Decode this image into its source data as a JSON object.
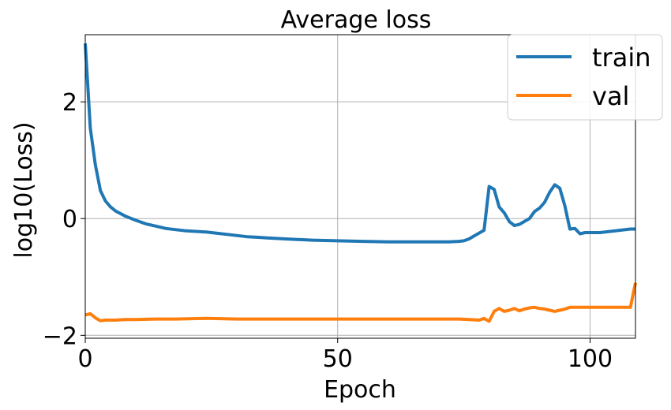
{
  "chart_data": {
    "type": "line",
    "title": "Average loss",
    "xlabel": "Epoch",
    "ylabel": "log10(Loss)",
    "xlim": [
      0,
      109
    ],
    "ylim": [
      -2.05,
      3.15
    ],
    "xticks": [
      0,
      50,
      100
    ],
    "yticks": [
      -2,
      0,
      2
    ],
    "xtick_labels": [
      "0",
      "50",
      "100"
    ],
    "ytick_labels": [
      "−2",
      "0",
      "2"
    ],
    "grid": true,
    "legend_position": "top-right",
    "series": [
      {
        "name": "train",
        "color": "#1f77b4",
        "x": [
          0,
          1,
          2,
          3,
          4,
          5,
          6,
          8,
          10,
          12,
          14,
          16,
          18,
          20,
          22,
          24,
          26,
          28,
          30,
          32,
          34,
          36,
          40,
          45,
          50,
          55,
          60,
          65,
          70,
          72,
          74,
          75,
          76,
          77,
          78,
          79,
          80,
          81,
          82,
          83,
          84,
          85,
          86,
          87,
          88,
          89,
          90,
          91,
          92,
          93,
          94,
          95,
          96,
          97,
          98,
          99,
          100,
          102,
          104,
          106,
          108,
          109
        ],
        "y": [
          3.0,
          1.55,
          0.92,
          0.48,
          0.3,
          0.2,
          0.13,
          0.04,
          -0.03,
          -0.09,
          -0.13,
          -0.17,
          -0.19,
          -0.21,
          -0.22,
          -0.23,
          -0.25,
          -0.27,
          -0.29,
          -0.31,
          -0.32,
          -0.33,
          -0.35,
          -0.37,
          -0.38,
          -0.39,
          -0.4,
          -0.4,
          -0.4,
          -0.4,
          -0.39,
          -0.38,
          -0.35,
          -0.3,
          -0.25,
          -0.2,
          0.55,
          0.5,
          0.2,
          0.1,
          -0.05,
          -0.12,
          -0.1,
          -0.05,
          0.0,
          0.12,
          0.18,
          0.28,
          0.45,
          0.58,
          0.52,
          0.22,
          -0.18,
          -0.17,
          -0.26,
          -0.24,
          -0.24,
          -0.24,
          -0.22,
          -0.2,
          -0.18,
          -0.18
        ]
      },
      {
        "name": "val",
        "color": "#ff7f0e",
        "x": [
          0,
          1,
          2,
          3,
          4,
          5,
          6,
          8,
          10,
          14,
          18,
          24,
          30,
          36,
          42,
          50,
          56,
          62,
          68,
          74,
          76,
          78,
          79,
          80,
          81,
          82,
          83,
          84,
          85,
          86,
          87,
          88,
          89,
          90,
          91,
          92,
          93,
          94,
          95,
          96,
          97,
          98,
          100,
          104,
          108,
          109
        ],
        "y": [
          -1.65,
          -1.63,
          -1.7,
          -1.75,
          -1.74,
          -1.74,
          -1.74,
          -1.73,
          -1.73,
          -1.72,
          -1.72,
          -1.71,
          -1.72,
          -1.72,
          -1.72,
          -1.72,
          -1.72,
          -1.72,
          -1.72,
          -1.72,
          -1.73,
          -1.74,
          -1.71,
          -1.76,
          -1.59,
          -1.54,
          -1.59,
          -1.57,
          -1.54,
          -1.58,
          -1.55,
          -1.53,
          -1.52,
          -1.54,
          -1.55,
          -1.57,
          -1.59,
          -1.57,
          -1.55,
          -1.52,
          -1.52,
          -1.52,
          -1.52,
          -1.52,
          -1.52,
          -1.1
        ]
      }
    ]
  }
}
